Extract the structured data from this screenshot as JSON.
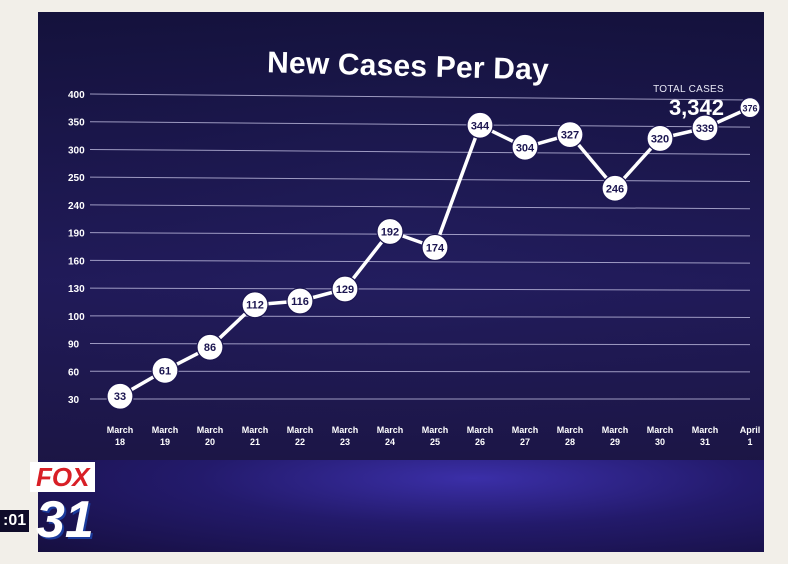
{
  "title": "New Cases Per Day",
  "total_cases": {
    "label": "TOTAL CASES",
    "value": "3,342"
  },
  "network": {
    "logo_text": "FOX",
    "channel": "31",
    "clock_fragment": ":01"
  },
  "colors": {
    "line": "#ffffff",
    "grid": "#c9c6e8",
    "bg": "#1b1550",
    "fox_red": "#d81f26"
  },
  "chart_data": {
    "type": "line",
    "title": "New Cases Per Day",
    "yticks": [
      "400",
      "350",
      "300",
      "250",
      "240",
      "190",
      "160",
      "130",
      "100",
      "90",
      "60",
      "30"
    ],
    "categories": [
      {
        "m": "March",
        "d": "18"
      },
      {
        "m": "March",
        "d": "19"
      },
      {
        "m": "March",
        "d": "20"
      },
      {
        "m": "March",
        "d": "21"
      },
      {
        "m": "March",
        "d": "22"
      },
      {
        "m": "March",
        "d": "23"
      },
      {
        "m": "March",
        "d": "24"
      },
      {
        "m": "March",
        "d": "25"
      },
      {
        "m": "March",
        "d": "26"
      },
      {
        "m": "March",
        "d": "27"
      },
      {
        "m": "March",
        "d": "28"
      },
      {
        "m": "March",
        "d": "29"
      },
      {
        "m": "March",
        "d": "30"
      },
      {
        "m": "March",
        "d": "31"
      },
      {
        "m": "April",
        "d": "1"
      }
    ],
    "values": [
      33,
      61,
      86,
      112,
      116,
      129,
      192,
      174,
      344,
      304,
      327,
      246,
      320,
      339,
      376
    ],
    "grid": true,
    "legend": "none"
  }
}
